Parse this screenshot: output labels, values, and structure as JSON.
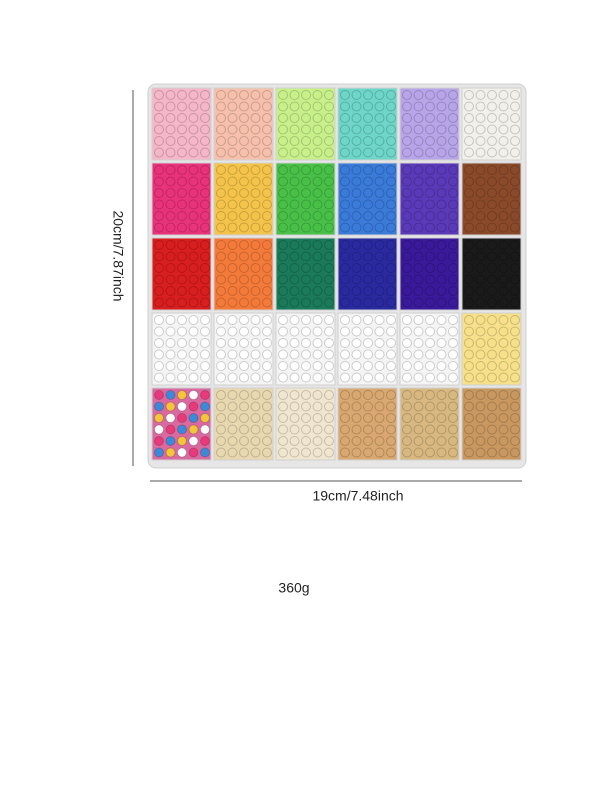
{
  "height_label": "20cm/7.87inch",
  "width_label": "19cm/7.48inch",
  "weight_label": "360g"
}
